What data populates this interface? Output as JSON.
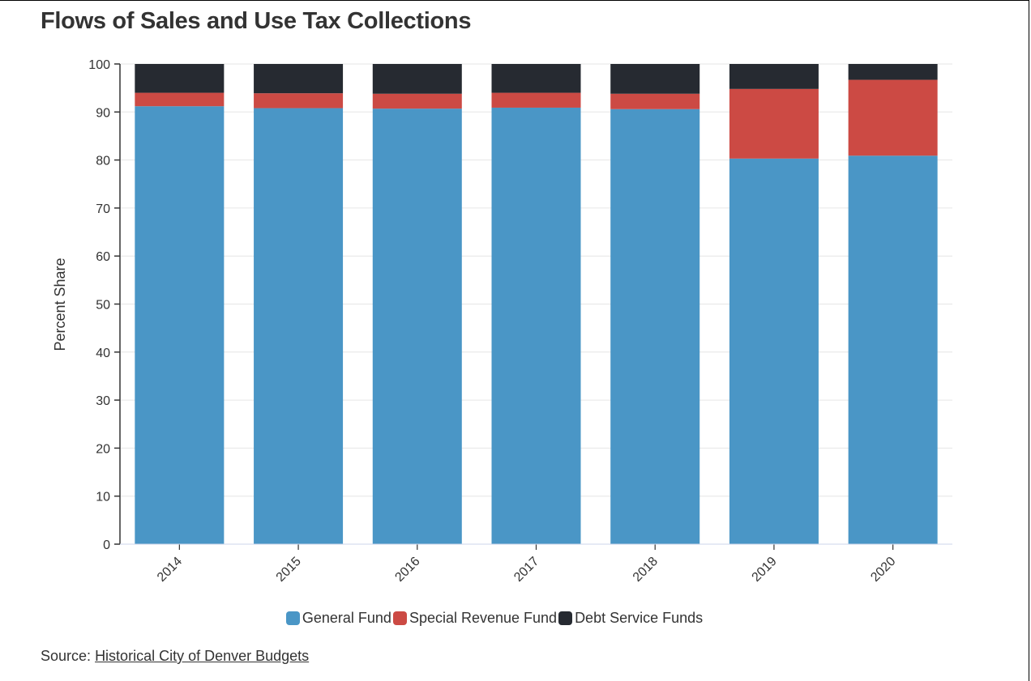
{
  "title": "Flows of Sales and Use Tax Collections",
  "source": {
    "label": "Source:",
    "link_text": "Historical City of Denver Budgets"
  },
  "colors": {
    "general": "#4a96c6",
    "special": "#cc4a44",
    "debt": "#262a31"
  },
  "chart_data": {
    "type": "bar",
    "stacked": true,
    "title": "Flows of Sales and Use Tax Collections",
    "xlabel": "",
    "ylabel": "Percent Share",
    "ylim": [
      0,
      100
    ],
    "yticks": [
      0,
      10,
      20,
      30,
      40,
      50,
      60,
      70,
      80,
      90,
      100
    ],
    "categories": [
      "2014",
      "2015",
      "2016",
      "2017",
      "2018",
      "2019",
      "2020"
    ],
    "series": [
      {
        "name": "General Fund",
        "values": [
          91.2,
          90.8,
          90.7,
          90.9,
          90.6,
          80.3,
          80.9
        ]
      },
      {
        "name": "Special Revenue Fund",
        "values": [
          2.8,
          3.1,
          3.1,
          3.1,
          3.2,
          14.5,
          15.8
        ]
      },
      {
        "name": "Debt Service Funds",
        "values": [
          6.0,
          6.1,
          6.2,
          6.0,
          6.2,
          5.2,
          3.3
        ]
      }
    ],
    "legend": "bottom-center",
    "grid": true
  }
}
